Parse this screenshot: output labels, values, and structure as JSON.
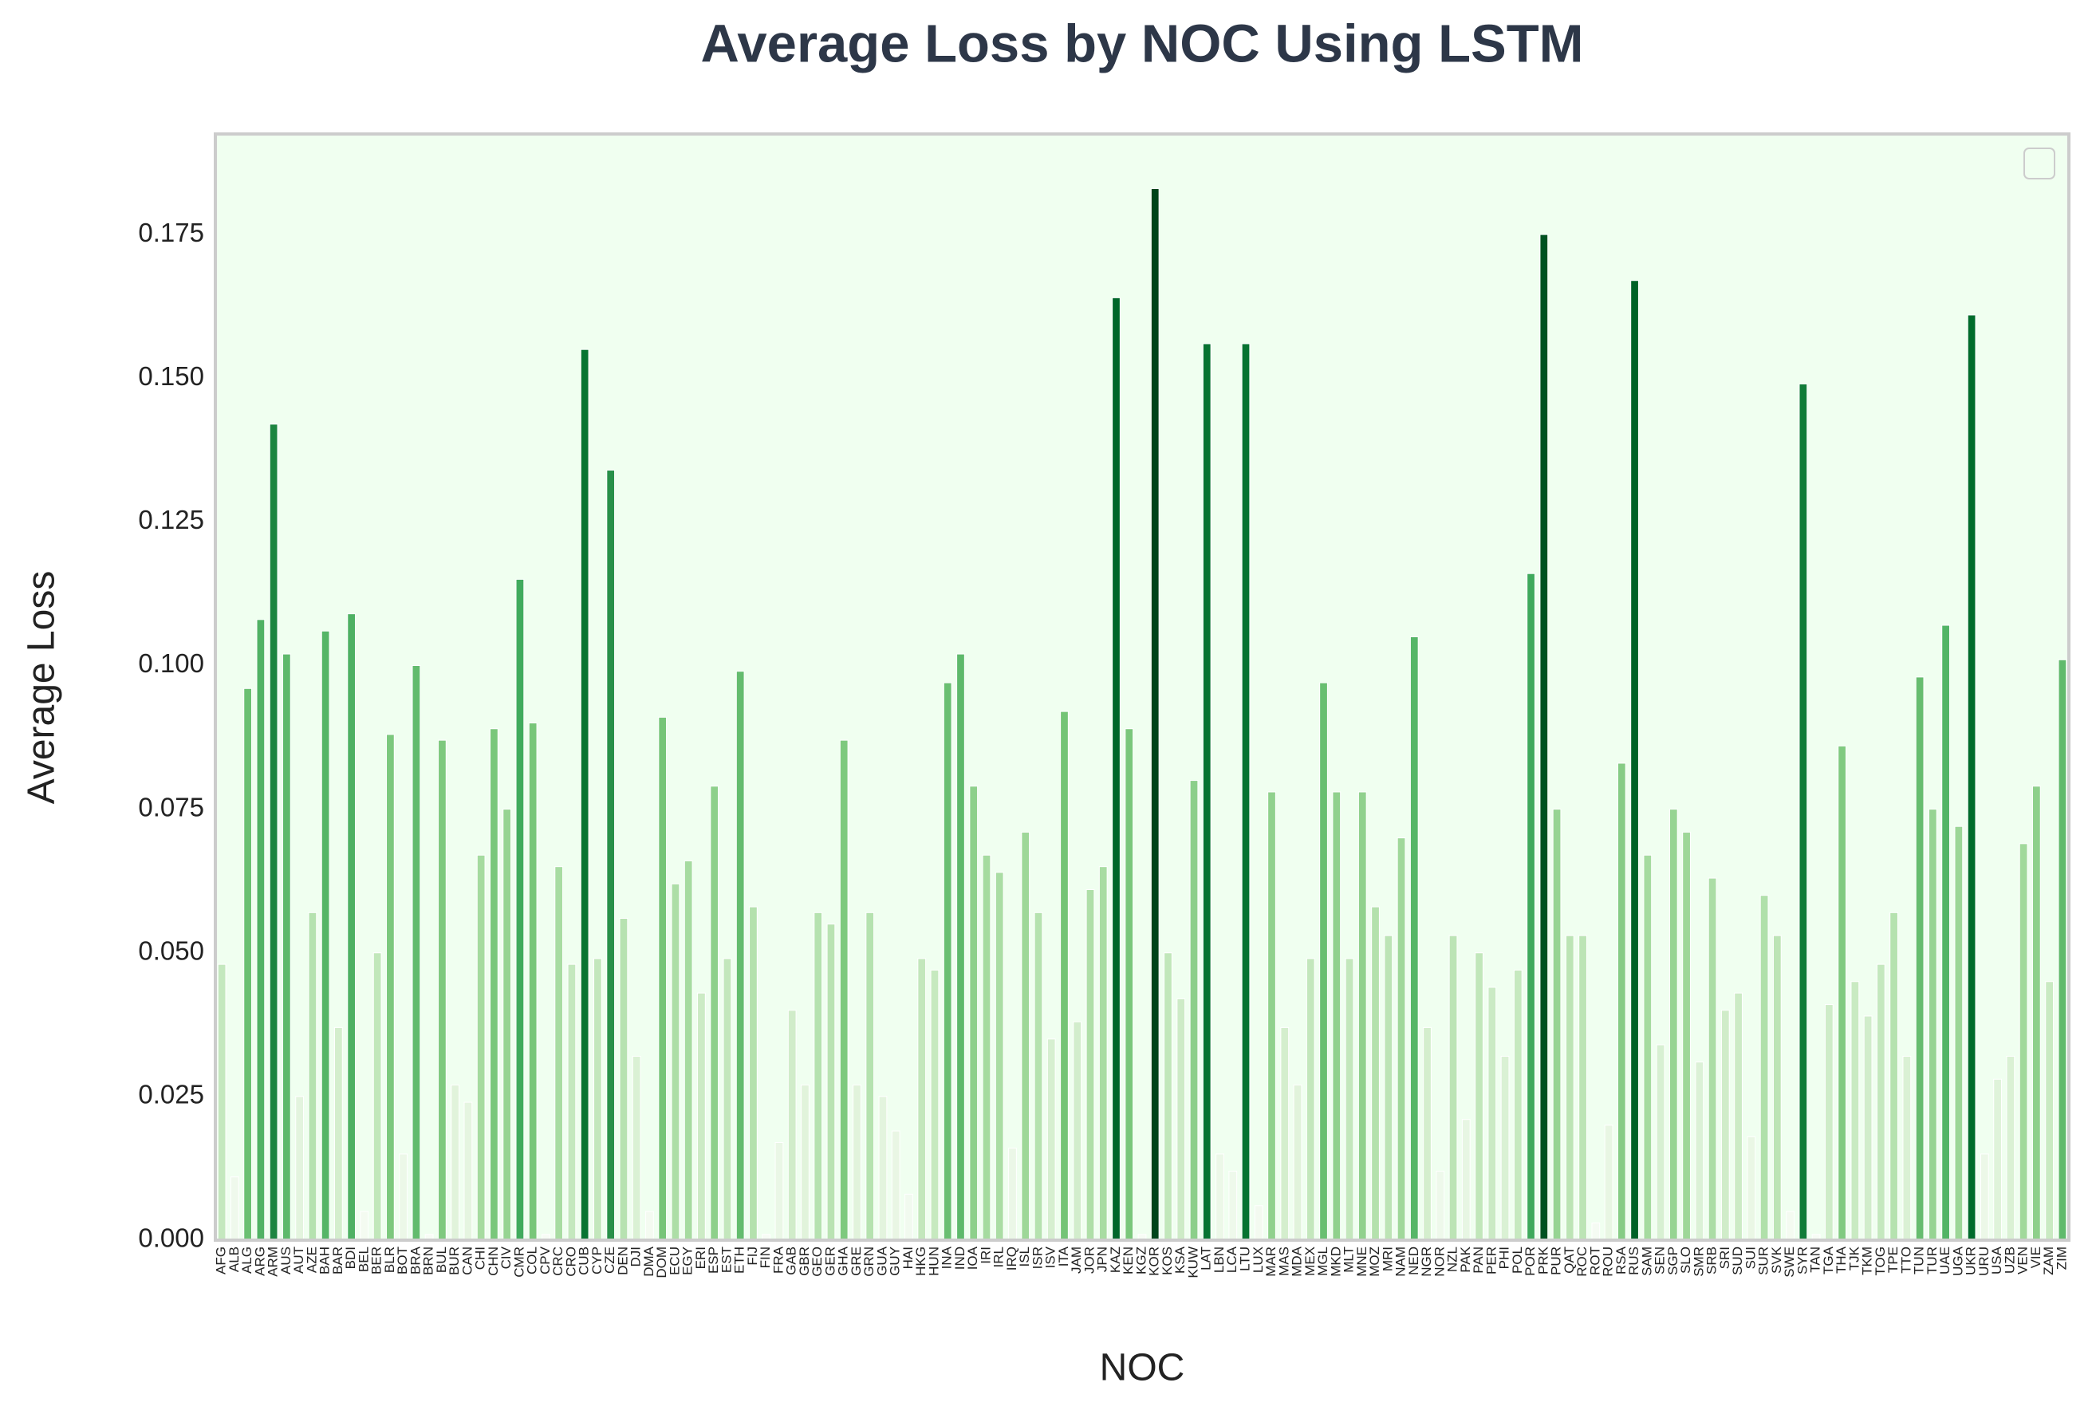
{
  "chart_data": {
    "type": "bar",
    "title": "Average Loss by NOC Using LSTM",
    "x_label": "NOC",
    "y_label": "Average Loss",
    "categories": [
      "AFG",
      "ALB",
      "ALG",
      "ARG",
      "ARM",
      "AUS",
      "AUT",
      "AZE",
      "BAH",
      "BAR",
      "BDI",
      "BEL",
      "BER",
      "BLR",
      "BOT",
      "BRA",
      "BRN",
      "BUL",
      "BUR",
      "CAN",
      "CHI",
      "CHN",
      "CIV",
      "CMR",
      "COL",
      "CPV",
      "CRC",
      "CRO",
      "CUB",
      "CYP",
      "CZE",
      "DEN",
      "DJI",
      "DMA",
      "DOM",
      "ECU",
      "EGY",
      "ERI",
      "ESP",
      "EST",
      "ETH",
      "FIJ",
      "FIN",
      "FRA",
      "GAB",
      "GBR",
      "GEO",
      "GER",
      "GHA",
      "GRE",
      "GRN",
      "GUA",
      "GUY",
      "HAI",
      "HKG",
      "HUN",
      "INA",
      "IND",
      "IOA",
      "IRI",
      "IRL",
      "IRQ",
      "ISL",
      "ISR",
      "ISV",
      "ITA",
      "JAM",
      "JOR",
      "JPN",
      "KAZ",
      "KEN",
      "KGZ",
      "KOR",
      "KOS",
      "KSA",
      "KUW",
      "LAT",
      "LBN",
      "LCA",
      "LTU",
      "LUX",
      "MAR",
      "MAS",
      "MDA",
      "MEX",
      "MGL",
      "MKD",
      "MLT",
      "MNE",
      "MOZ",
      "MRI",
      "NAM",
      "NED",
      "NGR",
      "NOR",
      "NZL",
      "PAK",
      "PAN",
      "PER",
      "PHI",
      "POL",
      "POR",
      "PRK",
      "PUR",
      "QAT",
      "ROC",
      "ROT",
      "ROU",
      "RSA",
      "RUS",
      "SAM",
      "SEN",
      "SGP",
      "SLO",
      "SMR",
      "SRB",
      "SRI",
      "SUD",
      "SUI",
      "SUR",
      "SVK",
      "SWE",
      "SYR",
      "TAN",
      "TGA",
      "THA",
      "TJK",
      "TKM",
      "TOG",
      "TPE",
      "TTO",
      "TUN",
      "TUR",
      "UAE",
      "UGA",
      "UKR",
      "URU",
      "USA",
      "UZB",
      "VEN",
      "VIE",
      "ZAM",
      "ZIM"
    ],
    "values": [
      0.048,
      0.011,
      0.096,
      0.108,
      0.142,
      0.102,
      0.025,
      0.057,
      0.106,
      0.037,
      0.109,
      0.005,
      0.05,
      0.088,
      0.015,
      0.1,
      0.001,
      0.087,
      0.027,
      0.024,
      0.067,
      0.089,
      0.075,
      0.115,
      0.09,
      0.001,
      0.065,
      0.048,
      0.155,
      0.049,
      0.134,
      0.056,
      0.032,
      0.005,
      0.091,
      0.062,
      0.066,
      0.043,
      0.079,
      0.049,
      0.099,
      0.058,
      0.001,
      0.017,
      0.04,
      0.027,
      0.057,
      0.055,
      0.087,
      0.027,
      0.057,
      0.025,
      0.019,
      0.008,
      0.049,
      0.047,
      0.097,
      0.102,
      0.079,
      0.067,
      0.064,
      0.016,
      0.071,
      0.057,
      0.035,
      0.092,
      0.038,
      0.061,
      0.065,
      0.164,
      0.089,
      0.001,
      0.183,
      0.05,
      0.042,
      0.08,
      0.156,
      0.015,
      0.012,
      0.156,
      0.006,
      0.078,
      0.037,
      0.027,
      0.049,
      0.097,
      0.078,
      0.049,
      0.078,
      0.058,
      0.053,
      0.07,
      0.105,
      0.037,
      0.012,
      0.053,
      0.021,
      0.05,
      0.044,
      0.032,
      0.047,
      0.116,
      0.175,
      0.075,
      0.053,
      0.053,
      0.003,
      0.02,
      0.083,
      0.167,
      0.067,
      0.034,
      0.075,
      0.071,
      0.031,
      0.063,
      0.04,
      0.043,
      0.018,
      0.06,
      0.053,
      0.005,
      0.149,
      0.001,
      0.041,
      0.086,
      0.045,
      0.039,
      0.048,
      0.057,
      0.032,
      0.098,
      0.075,
      0.107,
      0.072,
      0.161,
      0.015,
      0.028,
      0.032,
      0.069,
      0.079,
      0.045,
      0.101
    ],
    "cmap": "Greens",
    "ylim": [
      0,
      0.1925
    ],
    "yticks": [
      {
        "value": 0,
        "label": "0.000"
      },
      {
        "value": 0.025,
        "label": "0.025"
      },
      {
        "value": 0.05,
        "label": "0.050"
      },
      {
        "value": 0.075,
        "label": "0.075"
      },
      {
        "value": 0.1,
        "label": "0.100"
      },
      {
        "value": 0.125,
        "label": "0.125"
      },
      {
        "value": 0.15,
        "label": "0.150"
      },
      {
        "value": 0.175,
        "label": "0.175"
      }
    ],
    "grid": false,
    "legend": "upper right",
    "background": "#f0fff0"
  }
}
